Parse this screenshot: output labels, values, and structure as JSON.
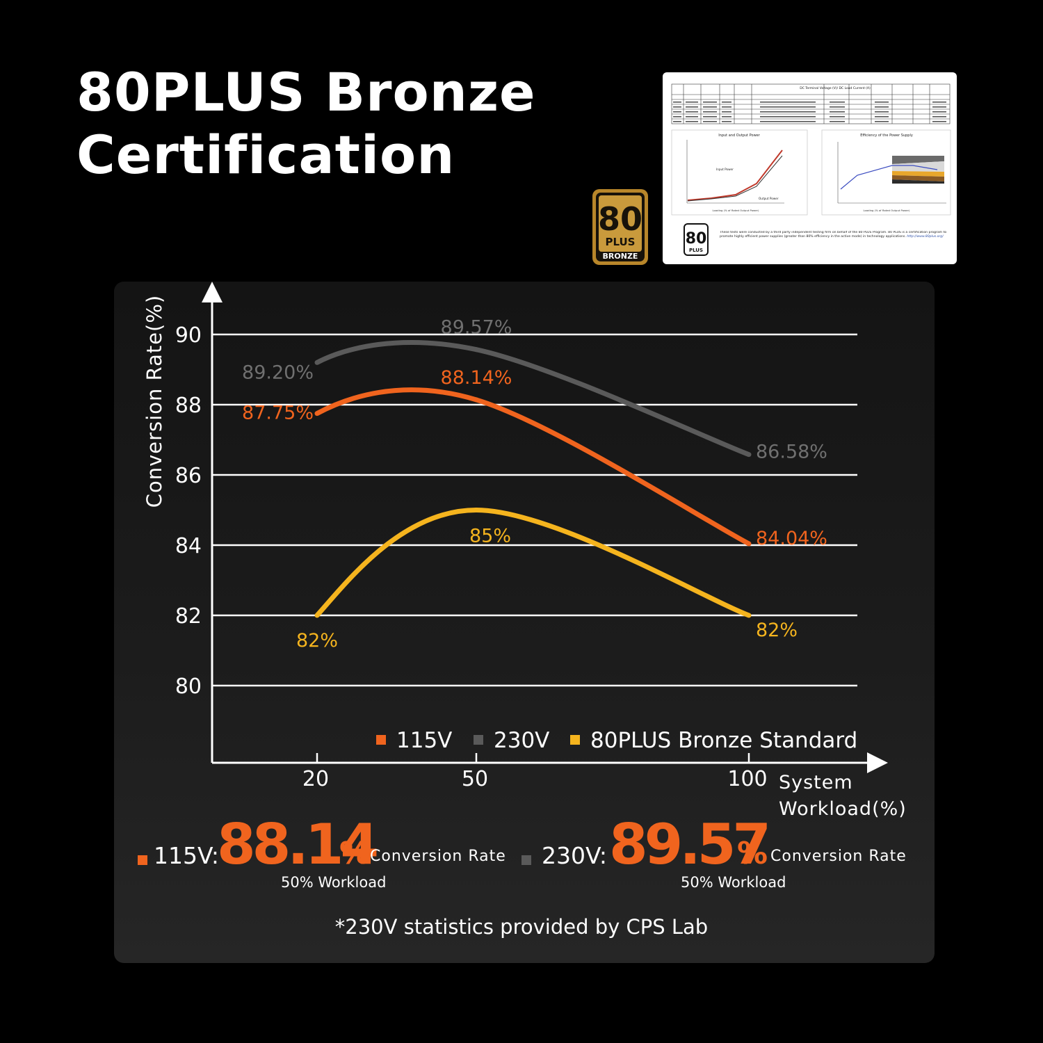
{
  "title": {
    "line1": "80PLUS Bronze",
    "line2": "Certification"
  },
  "badge": {
    "big": "80",
    "plus": "PLUS",
    "tier": "BRONZE",
    "color": "#b8862a"
  },
  "report": {
    "table_title": "DC Terminal Voltage (V)/ DC Load Current (A)",
    "left_chart_title": "Input and Output Power",
    "right_chart_title": "Efficiency of the Power Supply",
    "input_power_label": "Input Power",
    "output_power_label": "Output Power",
    "x_axis_label": "Loading (% of Rated Output Power)",
    "logo_big": "80",
    "logo_small": "PLUS",
    "note": "These tests were conducted by a third party independent testing firm on behalf of the 80 PLUS Program. 80 PLUS is a certification program to promote highly efficient power supplies (greater than 80% efficiency in the active mode) in technology applications.",
    "url": "http://www.80plus.org/"
  },
  "chart_data": {
    "type": "line",
    "xlabel": "System Workload(%)",
    "ylabel": "Conversion Rate(%)",
    "x_ticks": [
      20,
      50,
      100
    ],
    "y_ticks": [
      80,
      82,
      84,
      86,
      88,
      90
    ],
    "ylim": [
      78,
      92
    ],
    "grid": true,
    "legend_position": "bottom",
    "series": [
      {
        "name": "115V",
        "color": "#f0641e",
        "x": [
          20,
          50,
          100
        ],
        "values": [
          87.75,
          88.14,
          84.04
        ],
        "labels": [
          "87.75%",
          "88.14%",
          "84.04%"
        ]
      },
      {
        "name": "230V",
        "color": "#5a5a5a",
        "x": [
          20,
          50,
          100
        ],
        "values": [
          89.2,
          89.57,
          86.58
        ],
        "labels": [
          "89.20%",
          "89.57%",
          "86.58%"
        ]
      },
      {
        "name": "80PLUS Bronze Standard",
        "color": "#f5b41e",
        "x": [
          20,
          50,
          100
        ],
        "values": [
          82,
          85,
          82
        ],
        "labels": [
          "82%",
          "85%",
          "82%"
        ]
      }
    ]
  },
  "summary": [
    {
      "voltage": "115V:",
      "value": "88.14",
      "unit": "%",
      "label": "Conversion Rate",
      "workload": "50% Workload",
      "color": "#f0641e"
    },
    {
      "voltage": "230V:",
      "value": "89.57",
      "unit": "%",
      "label": "Conversion Rate",
      "workload": "50% Workload",
      "color": "#5a5a5a"
    }
  ],
  "footnote": "*230V statistics provided by CPS Lab"
}
